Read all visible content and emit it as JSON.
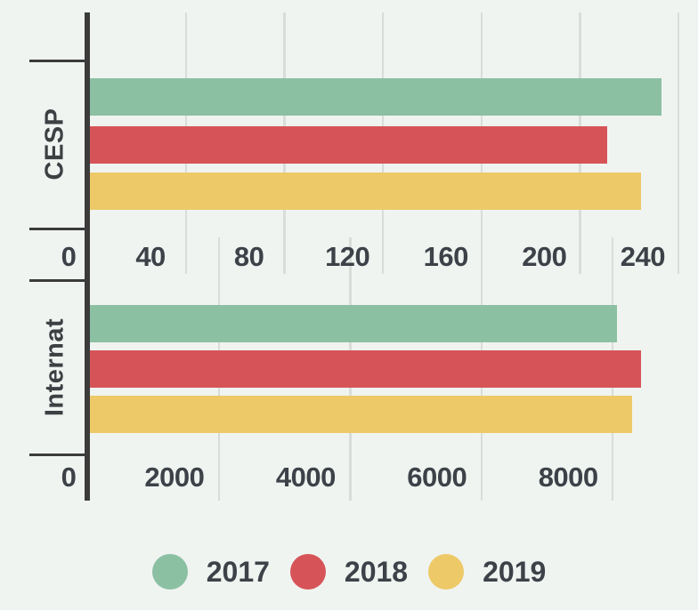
{
  "background": "#f0f4f1",
  "axis_color": "#3b3b3b",
  "grid_color": "#d9ddd9",
  "text_color": "#3d4148",
  "chart_data": [
    {
      "type": "bar",
      "orientation": "horizontal",
      "category": "CESP",
      "x_ticks": [
        0,
        40,
        80,
        120,
        160,
        200,
        240
      ],
      "xlim": [
        0,
        248
      ],
      "grid": true,
      "series": [
        {
          "name": "2017",
          "value": 233,
          "color": "#8bc0a3"
        },
        {
          "name": "2018",
          "value": 211,
          "color": "#d65458"
        },
        {
          "name": "2019",
          "value": 225,
          "color": "#edc968"
        }
      ]
    },
    {
      "type": "bar",
      "orientation": "horizontal",
      "category": "Internat",
      "x_ticks": [
        0,
        2000,
        4000,
        6000,
        8000
      ],
      "xlim": [
        0,
        9300
      ],
      "grid": true,
      "series": [
        {
          "name": "2017",
          "value": 8070,
          "color": "#8bc0a3"
        },
        {
          "name": "2018",
          "value": 8430,
          "color": "#d65458"
        },
        {
          "name": "2019",
          "value": 8300,
          "color": "#edc968"
        }
      ]
    }
  ],
  "legend": {
    "position": "bottom-center",
    "items": [
      {
        "label": "2017",
        "color": "#8bc0a3"
      },
      {
        "label": "2018",
        "color": "#d65458"
      },
      {
        "label": "2019",
        "color": "#edc968"
      }
    ]
  }
}
